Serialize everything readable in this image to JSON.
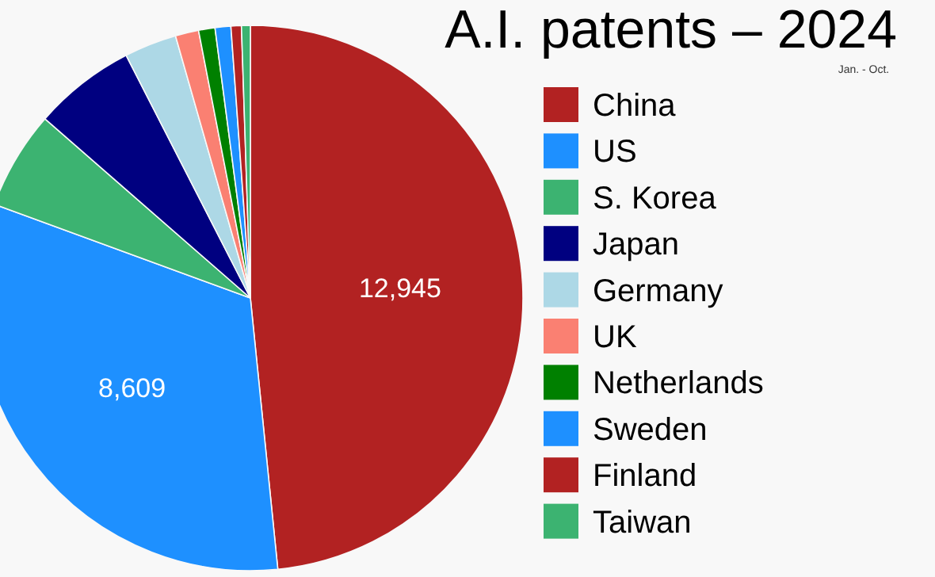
{
  "chart_data": {
    "type": "pie",
    "title": "A.I. patents – 2024",
    "subtitle": "Jan. - Oct.",
    "categories": [
      "China",
      "US",
      "S. Korea",
      "Japan",
      "Germany",
      "UK",
      "Netherlands",
      "Sweden",
      "Finland",
      "Taiwan"
    ],
    "values": [
      12945,
      8609,
      1560,
      1620,
      830,
      370,
      260,
      250,
      165,
      140
    ],
    "colors": [
      "#b22222",
      "#1e90ff",
      "#3cb371",
      "#000080",
      "#add8e6",
      "#fa8072",
      "#008000",
      "#1e90ff",
      "#b22222",
      "#3cb371"
    ],
    "value_labels": [
      "12,945",
      "8,609",
      null,
      null,
      null,
      null,
      null,
      null,
      null,
      null
    ],
    "legend": "right"
  }
}
